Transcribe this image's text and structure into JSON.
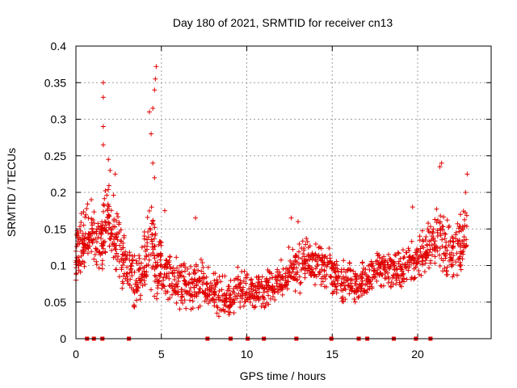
{
  "chart_data": {
    "type": "scatter",
    "title": "Day 180 of 2021, SRMTID for receiver cn13",
    "xlabel": "GPS time / hours",
    "ylabel": "SRMTID / TECUs",
    "xlim": [
      0,
      24.3
    ],
    "ylim": [
      0,
      0.4
    ],
    "x_ticks": [
      0,
      5,
      10,
      15,
      20
    ],
    "x_tick_labels": [
      "0",
      "5",
      "10",
      "15",
      "20"
    ],
    "y_ticks": [
      0,
      0.05,
      0.1,
      0.15,
      0.2,
      0.25,
      0.3,
      0.35,
      0.4
    ],
    "y_tick_labels": [
      "0",
      "0.05",
      "0.1",
      "0.15",
      "0.2",
      "0.25",
      "0.3",
      "0.35",
      "0.4"
    ],
    "grid": true,
    "marker": "+",
    "color": "#e00000",
    "gap_marker_color": "#e00000",
    "gap_markers_x": [
      0.65,
      1.05,
      1.55,
      3.1,
      7.7,
      9.05,
      10.05,
      11.0,
      12.9,
      14.95,
      16.55,
      17.05,
      18.6,
      19.9,
      20.75
    ],
    "series": [
      {
        "name": "SRMTID",
        "envelope": [
          [
            0.0,
            0.07,
            0.14
          ],
          [
            0.3,
            0.09,
            0.17
          ],
          [
            0.6,
            0.1,
            0.19
          ],
          [
            1.0,
            0.11,
            0.18
          ],
          [
            1.5,
            0.09,
            0.17
          ],
          [
            1.8,
            0.12,
            0.22
          ],
          [
            2.2,
            0.1,
            0.2
          ],
          [
            2.6,
            0.07,
            0.16
          ],
          [
            3.0,
            0.06,
            0.13
          ],
          [
            3.5,
            0.04,
            0.12
          ],
          [
            3.9,
            0.05,
            0.13
          ],
          [
            4.3,
            0.07,
            0.2
          ],
          [
            4.7,
            0.05,
            0.14
          ],
          [
            5.0,
            0.05,
            0.14
          ],
          [
            5.5,
            0.05,
            0.12
          ],
          [
            6.0,
            0.04,
            0.11
          ],
          [
            6.5,
            0.04,
            0.1
          ],
          [
            7.0,
            0.04,
            0.11
          ],
          [
            7.5,
            0.04,
            0.11
          ],
          [
            8.0,
            0.03,
            0.09
          ],
          [
            8.5,
            0.03,
            0.09
          ],
          [
            9.0,
            0.03,
            0.08
          ],
          [
            9.5,
            0.04,
            0.1
          ],
          [
            10.0,
            0.04,
            0.09
          ],
          [
            10.5,
            0.04,
            0.09
          ],
          [
            11.0,
            0.04,
            0.09
          ],
          [
            11.5,
            0.05,
            0.1
          ],
          [
            12.0,
            0.05,
            0.11
          ],
          [
            12.5,
            0.06,
            0.13
          ],
          [
            13.0,
            0.06,
            0.14
          ],
          [
            13.5,
            0.07,
            0.14
          ],
          [
            14.0,
            0.07,
            0.13
          ],
          [
            14.5,
            0.07,
            0.13
          ],
          [
            15.0,
            0.06,
            0.12
          ],
          [
            15.5,
            0.05,
            0.11
          ],
          [
            16.0,
            0.05,
            0.11
          ],
          [
            16.5,
            0.05,
            0.1
          ],
          [
            17.0,
            0.06,
            0.11
          ],
          [
            17.5,
            0.07,
            0.12
          ],
          [
            18.0,
            0.07,
            0.12
          ],
          [
            18.5,
            0.07,
            0.12
          ],
          [
            19.0,
            0.07,
            0.12
          ],
          [
            19.5,
            0.08,
            0.13
          ],
          [
            20.0,
            0.08,
            0.14
          ],
          [
            20.5,
            0.09,
            0.16
          ],
          [
            21.0,
            0.1,
            0.18
          ],
          [
            21.5,
            0.09,
            0.17
          ],
          [
            22.0,
            0.08,
            0.16
          ],
          [
            22.5,
            0.09,
            0.17
          ],
          [
            22.9,
            0.1,
            0.19
          ]
        ],
        "peaks": [
          [
            0.9,
            0.19
          ],
          [
            1.6,
            0.35
          ],
          [
            1.6,
            0.33
          ],
          [
            1.6,
            0.29
          ],
          [
            1.6,
            0.265
          ],
          [
            1.9,
            0.245
          ],
          [
            2.0,
            0.23
          ],
          [
            2.3,
            0.225
          ],
          [
            4.3,
            0.31
          ],
          [
            4.4,
            0.28
          ],
          [
            4.5,
            0.315
          ],
          [
            4.6,
            0.34
          ],
          [
            4.65,
            0.355
          ],
          [
            4.7,
            0.372
          ],
          [
            4.5,
            0.24
          ],
          [
            4.6,
            0.22
          ],
          [
            21.3,
            0.235
          ],
          [
            21.4,
            0.24
          ],
          [
            22.9,
            0.225
          ],
          [
            22.8,
            0.2
          ],
          [
            19.7,
            0.18
          ],
          [
            12.6,
            0.165
          ],
          [
            13.0,
            0.16
          ],
          [
            7.0,
            0.165
          ],
          [
            5.2,
            0.175
          ]
        ]
      }
    ]
  }
}
